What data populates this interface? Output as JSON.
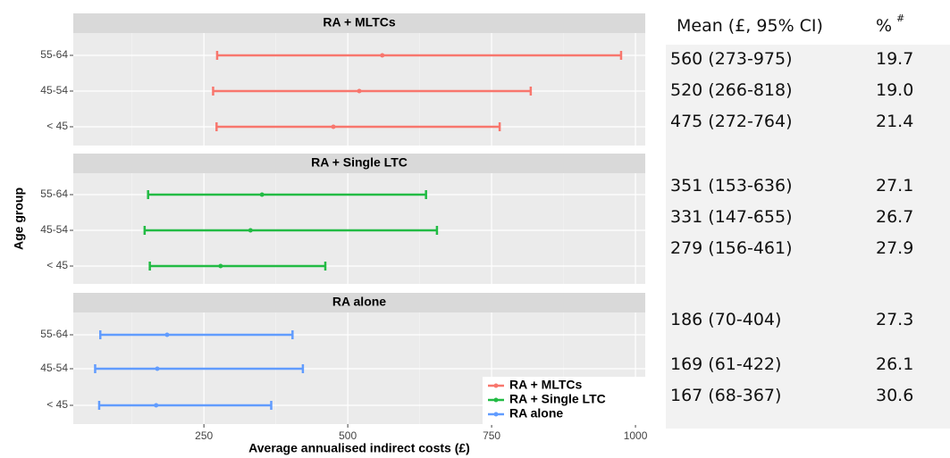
{
  "chart_data": {
    "type": "forest",
    "x_label": "Average annualised indirect costs (£)",
    "y_label": "Age group",
    "xlim": [
      23,
      1017
    ],
    "xticks": [
      250,
      500,
      750,
      1000
    ],
    "xminor": [
      125,
      375,
      625,
      875
    ],
    "grid": true,
    "legend": "bottom-right",
    "series": [
      {
        "name": "RA + MLTCs",
        "color": "#f8766d",
        "categories": [
          "55-64",
          "45-54",
          "< 45"
        ],
        "values": [
          560,
          520,
          475
        ],
        "lower": [
          273,
          266,
          272
        ],
        "upper": [
          975,
          818,
          764
        ]
      },
      {
        "name": "RA + Single LTC",
        "color": "#22bb44",
        "categories": [
          "55-64",
          "45-54",
          "< 45"
        ],
        "values": [
          351,
          331,
          279
        ],
        "lower": [
          153,
          147,
          156
        ],
        "upper": [
          636,
          655,
          461
        ]
      },
      {
        "name": "RA alone",
        "color": "#619cff",
        "categories": [
          "55-64",
          "45-54",
          "< 45"
        ],
        "values": [
          186,
          169,
          167
        ],
        "lower": [
          70,
          61,
          68
        ],
        "upper": [
          404,
          422,
          367
        ]
      }
    ]
  },
  "table": {
    "header": [
      "Mean (£, 95% CI)",
      "%"
    ],
    "header_note": "#",
    "rows": [
      [
        "560 (273-975)",
        "19.7"
      ],
      [
        "520 (266-818)",
        "19.0"
      ],
      [
        "475 (272-764)",
        "21.4"
      ],
      [
        "351 (153-636)",
        "27.1"
      ],
      [
        "331 (147-655)",
        "26.7"
      ],
      [
        "279 (156-461)",
        "27.9"
      ],
      [
        "186 (70-404)",
        "27.3"
      ],
      [
        "169 (61-422)",
        "26.1"
      ],
      [
        "167 (68-367)",
        "30.6"
      ]
    ]
  }
}
